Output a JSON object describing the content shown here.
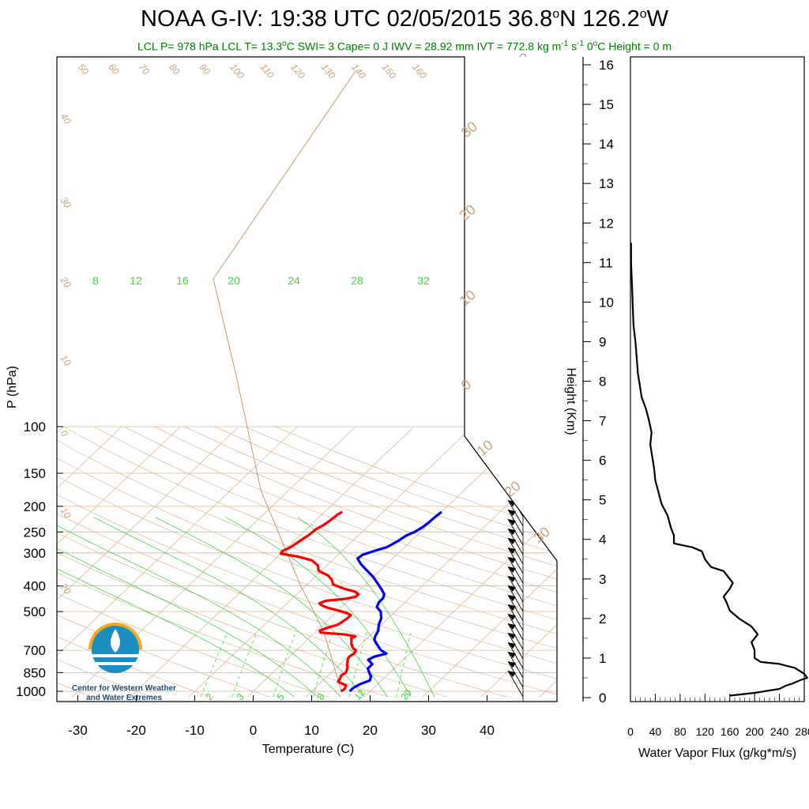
{
  "title": {
    "pre": "NOAA G-IV: 19:38 UTC 02/05/2015  36.8",
    "lat_unit": "N 126.2",
    "lon_unit": "W",
    "degree": "o"
  },
  "subtitle": {
    "part1": "LCL P= 978 hPa  LCL T= 13.3",
    "deg": "o",
    "part2": "C  SWI= 3  Cape= 0 J  IWV = 28.92 mm  IVT = 772.8 kg m",
    "sup1": "-1",
    "part3": " s",
    "sup2": "-1",
    "part4": "  0",
    "deg2": "o",
    "part5": "C Height = 0 m"
  },
  "logo": {
    "line1": "Center for Western Weather",
    "line2": "and Water Extremes"
  },
  "colors": {
    "temperature": "#ff0000",
    "dewpoint": "#0000ff",
    "isotherm": "#d8b896",
    "mixing_ratio": "#33e033",
    "moist_adiabat": "#33cc33",
    "flux": "#000000",
    "subtitle": "#007a00"
  },
  "chart_data": [
    {
      "type": "line",
      "name": "skewt",
      "xlabel": "Temperature (C)",
      "ylabel": "P (hPa)",
      "x_ticks": [
        "-30",
        "-20",
        "-10",
        "0",
        "10",
        "20",
        "30",
        "40"
      ],
      "y_ticks": [
        "100",
        "150",
        "200",
        "250",
        "300",
        "400",
        "500",
        "700",
        "850",
        "1000"
      ],
      "y_tick_values": [
        100,
        150,
        200,
        250,
        300,
        400,
        500,
        700,
        850,
        1000
      ],
      "ylim": [
        100,
        1050
      ],
      "log_y": true,
      "skew": true,
      "isotherm_labels": [
        "50",
        "60",
        "70",
        "80",
        "90",
        "100",
        "110",
        "120",
        "130",
        "140",
        "150",
        "160"
      ],
      "dry_adiabat_left_labels": [
        "40",
        "30",
        "20",
        "10",
        "0",
        "10",
        "20"
      ],
      "right_labels": [
        "30",
        "20",
        "10",
        "0",
        "10",
        "20",
        "30"
      ],
      "mixing_ratio_labels": [
        "8",
        "12",
        "16",
        "20",
        "24",
        "28",
        "32"
      ],
      "mixing_ratio_bottom_labels": [
        "2",
        "3",
        "5",
        "8",
        "12",
        "20"
      ],
      "series": [
        {
          "key": "temperature",
          "points": [
            [
              1000,
              15
            ],
            [
              980,
              15.2
            ],
            [
              950,
              14.8
            ],
            [
              920,
              12.8
            ],
            [
              890,
              12.5
            ],
            [
              870,
              12.2
            ],
            [
              850,
              12.5
            ],
            [
              820,
              12.0
            ],
            [
              790,
              11.2
            ],
            [
              760,
              10.5
            ],
            [
              740,
              10.2
            ],
            [
              720,
              10.5
            ],
            [
              700,
              10.2
            ],
            [
              690,
              9.5
            ],
            [
              680,
              9.0
            ],
            [
              660,
              8.2
            ],
            [
              640,
              7.6
            ],
            [
              630,
              7.2
            ],
            [
              620,
              7.6
            ],
            [
              610,
              5.5
            ],
            [
              600,
              1.0
            ],
            [
              590,
              0.5
            ],
            [
              580,
              1.0
            ],
            [
              560,
              2.5
            ],
            [
              545,
              2.8
            ],
            [
              530,
              3.0
            ],
            [
              515,
              3.0
            ],
            [
              505,
              1.8
            ],
            [
              495,
              0.0
            ],
            [
              485,
              -2.0
            ],
            [
              475,
              -3.5
            ],
            [
              465,
              -4.5
            ],
            [
              455,
              -3.8
            ],
            [
              448,
              -1.0
            ],
            [
              440,
              0.5
            ],
            [
              430,
              0.6
            ],
            [
              420,
              -0.5
            ],
            [
              410,
              -2.8
            ],
            [
              395,
              -5.5
            ],
            [
              380,
              -6.5
            ],
            [
              365,
              -8.0
            ],
            [
              350,
              -10.5
            ],
            [
              335,
              -11.5
            ],
            [
              320,
              -13.5
            ],
            [
              310,
              -16.5
            ],
            [
              302,
              -20.0
            ],
            [
              295,
              -20.2
            ],
            [
              285,
              -19.5
            ],
            [
              270,
              -19.0
            ],
            [
              255,
              -18.5
            ],
            [
              245,
              -18.4
            ],
            [
              235,
              -17.8
            ],
            [
              225,
              -17.5
            ],
            [
              215,
              -17.3
            ],
            [
              210,
              -17.0
            ]
          ]
        },
        {
          "key": "dewpoint",
          "points": [
            [
              1000,
              16.5
            ],
            [
              970,
              16.5
            ],
            [
              940,
              17.0
            ],
            [
              910,
              18.0
            ],
            [
              880,
              17.5
            ],
            [
              850,
              16.5
            ],
            [
              820,
              15.5
            ],
            [
              790,
              15.5
            ],
            [
              760,
              14.0
            ],
            [
              740,
              14.5
            ],
            [
              720,
              16.0
            ],
            [
              700,
              14.5
            ],
            [
              680,
              13.5
            ],
            [
              660,
              12.5
            ],
            [
              640,
              11.5
            ],
            [
              620,
              11.0
            ],
            [
              590,
              10.5
            ],
            [
              560,
              9.5
            ],
            [
              530,
              8.8
            ],
            [
              500,
              7.5
            ],
            [
              480,
              6.0
            ],
            [
              460,
              5.5
            ],
            [
              445,
              5.5
            ],
            [
              430,
              5.0
            ],
            [
              410,
              3.5
            ],
            [
              390,
              1.8
            ],
            [
              370,
              0.0
            ],
            [
              350,
              -2.2
            ],
            [
              330,
              -4.5
            ],
            [
              315,
              -6.0
            ],
            [
              305,
              -5.8
            ],
            [
              295,
              -4.5
            ],
            [
              285,
              -3.0
            ],
            [
              270,
              -2.2
            ],
            [
              258,
              -1.8
            ],
            [
              250,
              -1.0
            ],
            [
              240,
              -0.5
            ],
            [
              230,
              -0.3
            ],
            [
              220,
              -0.2
            ],
            [
              210,
              0.0
            ]
          ]
        }
      ]
    },
    {
      "type": "line",
      "name": "flux_profile",
      "xlabel": "Water Vapor Flux (g/kg*m/s)",
      "ylabel": "Height (Km)",
      "x_ticks": [
        "0",
        "40",
        "80",
        "120",
        "160",
        "200",
        "240",
        "280"
      ],
      "y_ticks": [
        "0",
        "1",
        "2",
        "3",
        "4",
        "5",
        "6",
        "7",
        "8",
        "9",
        "10",
        "11",
        "12",
        "13",
        "14",
        "15",
        "16"
      ],
      "xlim": [
        0,
        280
      ],
      "ylim": [
        -0.1,
        16.2
      ],
      "series": [
        {
          "key": "water_vapor_flux",
          "points": [
            [
              160,
              0.05
            ],
            [
              200,
              0.12
            ],
            [
              240,
              0.22
            ],
            [
              250,
              0.3
            ],
            [
              260,
              0.35
            ],
            [
              275,
              0.45
            ],
            [
              285,
              0.5
            ],
            [
              280,
              0.6
            ],
            [
              265,
              0.75
            ],
            [
              240,
              0.85
            ],
            [
              210,
              0.9
            ],
            [
              200,
              1.0
            ],
            [
              200,
              1.2
            ],
            [
              195,
              1.4
            ],
            [
              205,
              1.6
            ],
            [
              195,
              1.8
            ],
            [
              175,
              2.0
            ],
            [
              160,
              2.2
            ],
            [
              155,
              2.4
            ],
            [
              150,
              2.55
            ],
            [
              160,
              2.75
            ],
            [
              165,
              2.9
            ],
            [
              155,
              3.1
            ],
            [
              150,
              3.2
            ],
            [
              130,
              3.3
            ],
            [
              120,
              3.5
            ],
            [
              115,
              3.7
            ],
            [
              100,
              3.8
            ],
            [
              85,
              3.85
            ],
            [
              70,
              3.9
            ],
            [
              70,
              4.1
            ],
            [
              65,
              4.3
            ],
            [
              60,
              4.6
            ],
            [
              50,
              4.9
            ],
            [
              45,
              5.2
            ],
            [
              40,
              5.5
            ],
            [
              38,
              5.8
            ],
            [
              35,
              6.1
            ],
            [
              32,
              6.4
            ],
            [
              34,
              6.7
            ],
            [
              30,
              7.0
            ],
            [
              25,
              7.3
            ],
            [
              18,
              7.6
            ],
            [
              15,
              7.9
            ],
            [
              12,
              8.2
            ],
            [
              10,
              8.6
            ],
            [
              8,
              9.0
            ],
            [
              5,
              9.4
            ],
            [
              4,
              9.8
            ],
            [
              3,
              10.2
            ],
            [
              2,
              10.6
            ],
            [
              1,
              11.0
            ],
            [
              1,
              11.5
            ]
          ]
        }
      ]
    }
  ]
}
